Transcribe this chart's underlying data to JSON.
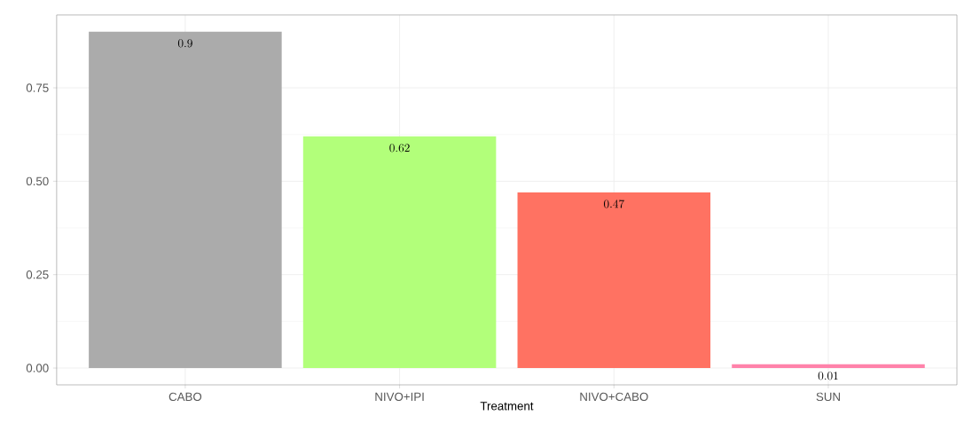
{
  "chart_data": {
    "type": "bar",
    "xlabel": "Treatment",
    "categories": [
      "CABO",
      "NIVO+IPI",
      "NIVO+CABO",
      "SUN"
    ],
    "values": [
      0.9,
      0.62,
      0.47,
      0.01
    ],
    "colors": [
      "#ababab",
      "#b2ff7a",
      "#ff7262",
      "#ff82aa"
    ],
    "ylim": [
      -0.045,
      0.945
    ],
    "yticks": [
      {
        "value": 0,
        "label": "0.00"
      },
      {
        "value": 0.25,
        "label": "0.25"
      },
      {
        "value": 0.5,
        "label": "0.50"
      },
      {
        "value": 0.75,
        "label": "0.75"
      }
    ],
    "grid": true,
    "data_labels": true
  }
}
